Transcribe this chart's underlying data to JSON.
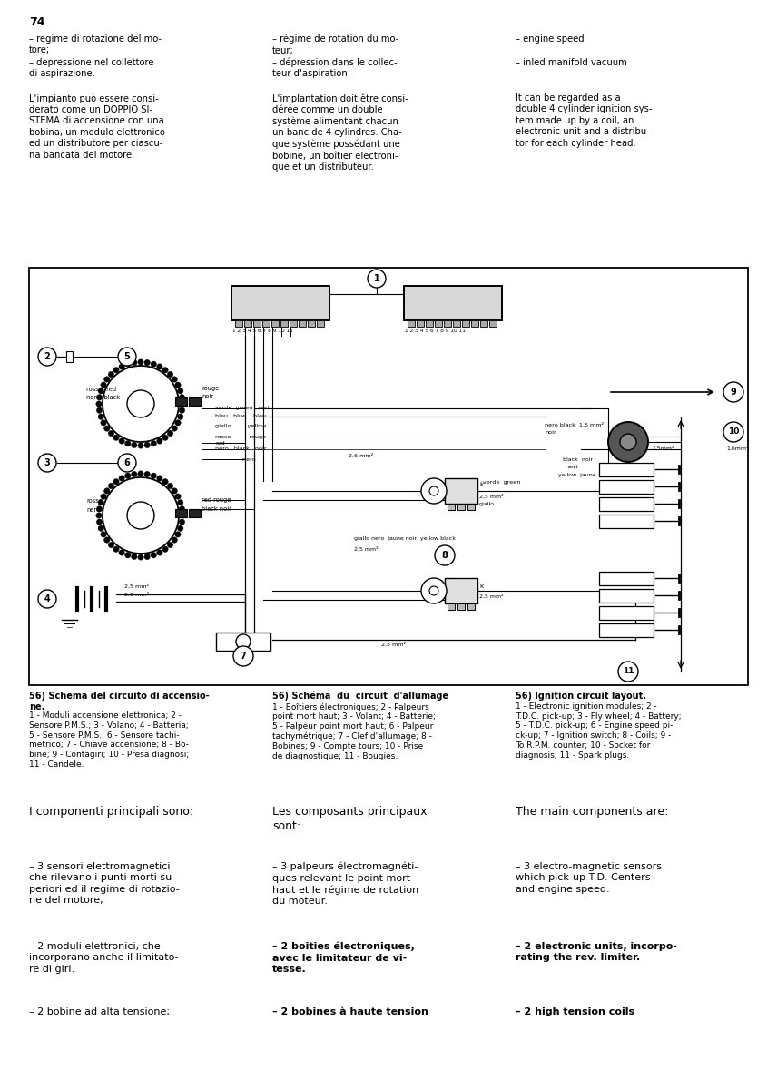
{
  "page_number": "74",
  "bg_color": "#ffffff",
  "text_color": "#000000",
  "para_col1_bullet1": "– regime di rotazione del mo-\ntore;",
  "para_col1_bullet2": "– depressione nel collettore\ndi aspirazione.",
  "para_col2_bullet1": "– régime de rotation du mo-\nteur;",
  "para_col2_bullet2": "– dépression dans le collec-\nteur d'aspiration.",
  "para_col3_bullet1": "– engine speed",
  "para_col3_bullet2": "– inled manifold vacuum",
  "para_col1": "L'impianto può essere consi-\nderato come un DOPPIO SI-\nSTEMA di accensione con una\nbobina, un modulo elettronico\ned un distributore per ciascu-\nna bancata del motore.",
  "para_col2": "L'implantation doit être consi-\ndérée comme un double\nsystème alimentant chacun\nun banc de 4 cylindres. Cha-\nque système possédant une\nbobine, un boîtier électroni-\nque et un distributeur.",
  "para_col3": "It can be regarded as a\ndouble 4 cylinder ignition sys-\ntem made up by a coil, an\nelectronic unit and a distribu-\ntor for each cylinder head.",
  "cap1_bold": "56) Schema del circuito di accensio-\nne.",
  "cap1_text": "1 - Moduli accensione elettronica; 2 -\nSensore P.M.S.; 3 - Volano; 4 - Batteria;\n5 - Sensore P.M.S.; 6 - Sensore tachi-\nmetrico; 7 - Chiave accensione; 8 - Bo-\nbine; 9 - Contagiri; 10 - Presa diagnosi;\n11 - Candele.",
  "cap2_bold": "56) Schéma  du  circuit  d'allumage",
  "cap2_text": "1 - Boîtiers électroniques; 2 - Palpeurs\npoint mort haut; 3 - Volant; 4 - Batterie;\n5 - Palpeur point mort haut; 6 - Palpeur\ntachymétrique; 7 - Clef d'allumage; 8 -\nBobines; 9 - Compte tours; 10 - Prise\nde diagnostique; 11 - Bougies.",
  "cap3_bold": "56) Ignition circuit layout.",
  "cap3_text": "1 - Electronic ignition modules; 2 -\nT.D.C. pick-up; 3 - Fly wheel; 4 - Battery;\n5 - T.D.C. pick-up; 6 - Engine speed pi-\nck-up; 7 - Ignition switch; 8 - Coils; 9 -\nTo R.P.M. counter; 10 - Socket for\ndiagnosis; 11 - Spark plugs.",
  "bot_h1": "I componenti principali sono:",
  "bot_h2": "Les composants principaux\nsont:",
  "bot_h3": "The main components are:",
  "bot_b1c1": "– 3 sensori elettromagnetici\nche rilevano i punti morti su-\nperiori ed il regime di rotazio-\nne del motore;",
  "bot_b1c2": "– 3 palpeurs électromagnéti-\nques relevant le point mort\nhaut et le régime de rotation\ndu moteur.",
  "bot_b1c3": "– 3 electro-magnetic sensors\nwhich pick-up T.D. Centers\nand engine speed.",
  "bot_b2c1": "– 2 moduli elettronici, che\nincorporano anche il limitato-\nre di giri.",
  "bot_b2c2": "– 2 boities électroniques,\navec le limitateur de vi-\ntesse.",
  "bot_b2c3": "– 2 electronic units, incorpo-\nrating the rev. limiter.",
  "bot_b3c1": "– 2 bobine ad alta tensione;",
  "bot_b3c2": "– 2 bobines à haute tension",
  "bot_b3c3": "– 2 high tension coils"
}
